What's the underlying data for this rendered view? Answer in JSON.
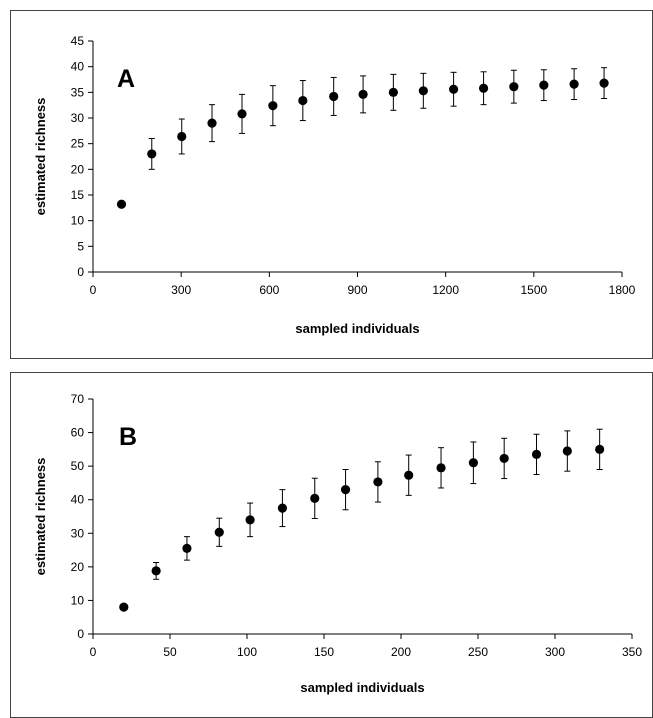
{
  "chart_data": [
    {
      "type": "scatter",
      "panel_label": "A",
      "xlabel": "sampled individuals",
      "ylabel": "estimated richness",
      "xlim": [
        0,
        1800
      ],
      "ylim": [
        0,
        45
      ],
      "xticks": [
        0,
        300,
        600,
        900,
        1200,
        1500,
        1800
      ],
      "yticks": [
        0,
        5,
        10,
        15,
        20,
        25,
        30,
        35,
        40,
        45
      ],
      "grid": false,
      "x": [
        97,
        200,
        302,
        405,
        507,
        612,
        714,
        819,
        919,
        1022,
        1124,
        1227,
        1329,
        1432,
        1534,
        1637,
        1739
      ],
      "y": [
        13.2,
        23.0,
        26.4,
        29.0,
        30.8,
        32.4,
        33.4,
        34.2,
        34.6,
        35.0,
        35.3,
        35.6,
        35.8,
        36.1,
        36.4,
        36.6,
        36.8
      ],
      "err": [
        0,
        3.0,
        3.4,
        3.6,
        3.8,
        3.9,
        3.9,
        3.7,
        3.6,
        3.5,
        3.4,
        3.3,
        3.2,
        3.2,
        3.0,
        3.0,
        3.0
      ]
    },
    {
      "type": "scatter",
      "panel_label": "B",
      "xlabel": "sampled individuals",
      "ylabel": "estimated richness",
      "xlim": [
        0,
        350
      ],
      "ylim": [
        0,
        70
      ],
      "xticks": [
        0,
        50,
        100,
        150,
        200,
        250,
        300,
        350
      ],
      "yticks": [
        0,
        10,
        20,
        30,
        40,
        50,
        60,
        70
      ],
      "grid": false,
      "x": [
        20,
        41,
        61,
        82,
        102,
        123,
        144,
        164,
        185,
        205,
        226,
        247,
        267,
        288,
        308,
        329
      ],
      "y": [
        8.0,
        18.8,
        25.5,
        30.3,
        34.0,
        37.5,
        40.4,
        43.0,
        45.3,
        47.3,
        49.5,
        51.0,
        52.3,
        53.5,
        54.5,
        55.0
      ],
      "err": [
        0,
        2.5,
        3.5,
        4.2,
        5.0,
        5.5,
        6.0,
        6.0,
        6.0,
        6.0,
        6.0,
        6.2,
        6.0,
        6.0,
        6.0,
        6.0
      ]
    }
  ]
}
